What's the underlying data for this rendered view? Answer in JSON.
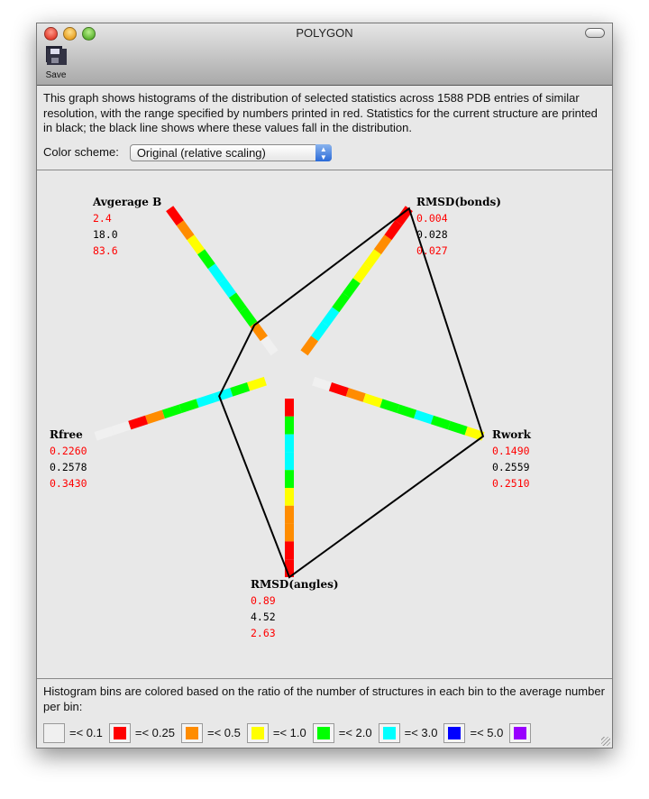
{
  "window": {
    "title": "POLYGON",
    "toolbar": {
      "save_label": "Save",
      "save_icon": "floppy-disk-icon"
    }
  },
  "description": "This graph shows histograms of the distribution of selected statistics across 1588 PDB entries of similar resolution, with the range specified by numbers printed in red.  Statistics for the current structure are printed in black; the black line shows where these values fall in the distribution.",
  "color_scheme": {
    "label": "Color scheme:",
    "selected": "Original (relative scaling)"
  },
  "colors": {
    "white": "#f0f0f0",
    "red": "#ff0000",
    "orange": "#ff8c00",
    "yellow": "#ffff00",
    "green": "#00ff00",
    "cyan": "#00ffff",
    "blue": "#0000ff",
    "purple": "#9900ff"
  },
  "axes": [
    {
      "name": "Avgerage B",
      "low": "2.4",
      "current": "18.0",
      "high": "83.6",
      "bins": [
        "white",
        "orange",
        "green",
        "green",
        "cyan",
        "cyan",
        "green",
        "yellow",
        "orange",
        "red"
      ]
    },
    {
      "name": "RMSD(bonds)",
      "low": "0.004",
      "current": "0.028",
      "high": "0.027",
      "bins": [
        "orange",
        "cyan",
        "cyan",
        "green",
        "green",
        "yellow",
        "yellow",
        "orange",
        "red",
        "red"
      ]
    },
    {
      "name": "Rwork",
      "low": "0.1490",
      "current": "0.2559",
      "high": "0.2510",
      "bins": [
        "white",
        "red",
        "orange",
        "yellow",
        "green",
        "green",
        "cyan",
        "green",
        "green",
        "yellow"
      ]
    },
    {
      "name": "RMSD(angles)",
      "low": "0.89",
      "current": "4.52",
      "high": "2.63",
      "bins": [
        "red",
        "green",
        "cyan",
        "cyan",
        "green",
        "yellow",
        "orange",
        "orange",
        "red",
        "red"
      ]
    },
    {
      "name": "Rfree",
      "low": "0.2260",
      "current": "0.2578",
      "high": "0.3430",
      "bins": [
        "yellow",
        "green",
        "cyan",
        "cyan",
        "green",
        "green",
        "orange",
        "red",
        "white",
        "white"
      ]
    }
  ],
  "legend": {
    "text": "Histogram bins are colored based on the ratio of the number of structures in each bin to the average number per bin:",
    "items": [
      {
        "color": "white",
        "label": "=< 0.1"
      },
      {
        "color": "red",
        "label": "=< 0.25"
      },
      {
        "color": "orange",
        "label": "=< 0.5"
      },
      {
        "color": "yellow",
        "label": "=< 1.0"
      },
      {
        "color": "green",
        "label": "=< 2.0"
      },
      {
        "color": "cyan",
        "label": "=< 3.0"
      },
      {
        "color": "blue",
        "label": "=< 5.0"
      },
      {
        "color": "purple",
        "label": ""
      }
    ]
  }
}
